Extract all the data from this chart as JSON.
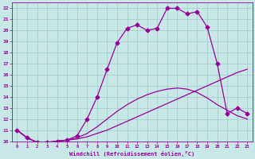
{
  "xlabel": "Windchill (Refroidissement éolien,°C)",
  "ylabel": "",
  "bg_color": "#c8e8e8",
  "line_color": "#990099",
  "grid_color": "#a0c8c8",
  "xlim": [
    -0.5,
    23.5
  ],
  "ylim": [
    10,
    22.5
  ],
  "xticks": [
    0,
    1,
    2,
    3,
    4,
    5,
    6,
    7,
    8,
    9,
    10,
    11,
    12,
    13,
    14,
    15,
    16,
    17,
    18,
    19,
    20,
    21,
    22,
    23
  ],
  "yticks": [
    10,
    11,
    12,
    13,
    14,
    15,
    16,
    17,
    18,
    19,
    20,
    21,
    22
  ],
  "line1_x": [
    0,
    1,
    2,
    3,
    4,
    5,
    6,
    7,
    8,
    9,
    10,
    11,
    12,
    13,
    14,
    15,
    16,
    17,
    18,
    19,
    20,
    21,
    22,
    23
  ],
  "line1_y": [
    11.0,
    10.3,
    9.9,
    9.9,
    10.0,
    10.1,
    10.2,
    10.4,
    10.7,
    11.0,
    11.4,
    11.8,
    12.2,
    12.6,
    13.0,
    13.4,
    13.8,
    14.2,
    14.6,
    15.0,
    15.4,
    15.8,
    16.2,
    16.5
  ],
  "line2_x": [
    0,
    1,
    2,
    3,
    4,
    5,
    6,
    7,
    8,
    9,
    10,
    11,
    12,
    13,
    14,
    15,
    16,
    17,
    18,
    19,
    20,
    21,
    22,
    23
  ],
  "line2_y": [
    11.0,
    10.3,
    9.9,
    9.9,
    10.0,
    10.1,
    10.3,
    10.7,
    11.3,
    12.0,
    12.7,
    13.3,
    13.8,
    14.2,
    14.5,
    14.7,
    14.8,
    14.7,
    14.4,
    13.9,
    13.3,
    12.8,
    12.3,
    12.0
  ],
  "line3_x": [
    0,
    1,
    2,
    3,
    4,
    5,
    6,
    7,
    8,
    9,
    10,
    11,
    12,
    13,
    14,
    15,
    16,
    17,
    18,
    19,
    20,
    21,
    22,
    23
  ],
  "line3_y": [
    11.0,
    10.3,
    9.9,
    9.9,
    10.0,
    10.1,
    10.5,
    12.0,
    14.0,
    16.5,
    18.9,
    20.2,
    20.5,
    20.0,
    20.2,
    22.0,
    22.0,
    21.5,
    21.7,
    20.3,
    17.0,
    12.5,
    13.0,
    12.5
  ],
  "marker": "D",
  "markersize": 2.5,
  "linewidth": 0.9
}
